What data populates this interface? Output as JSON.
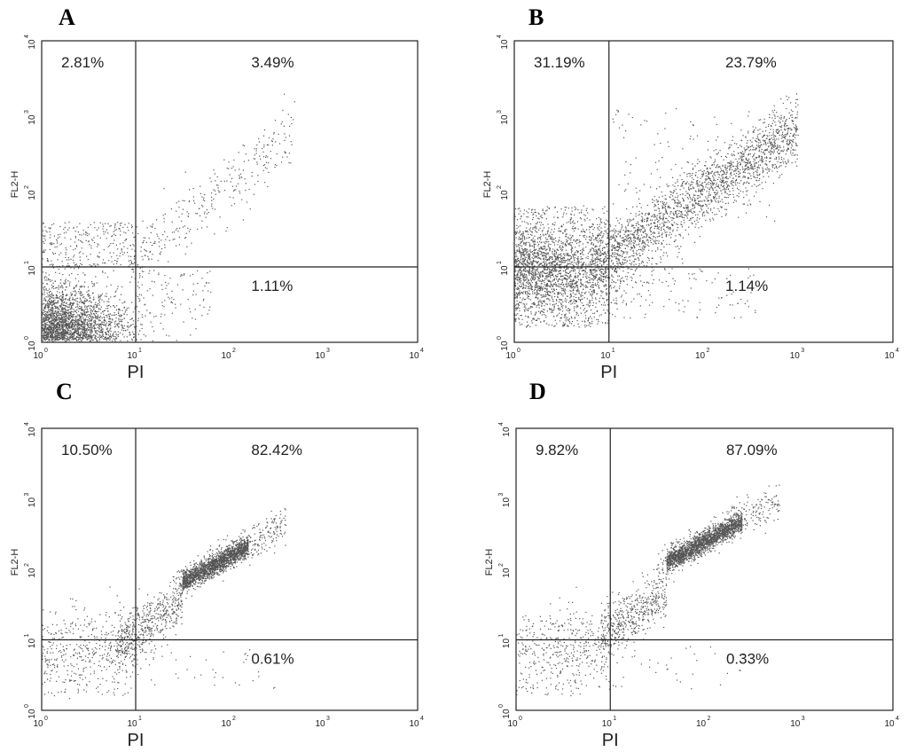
{
  "chart_data": [
    {
      "type": "scatter",
      "panel": "A",
      "xlabel": "PI",
      "ylabel": "FL2-H",
      "xscale": "log",
      "yscale": "log",
      "xlim": [
        1,
        10000
      ],
      "ylim": [
        1,
        10000
      ],
      "xticks": [
        "10^0",
        "10^1",
        "10^2",
        "10^3",
        "10^4"
      ],
      "yticks": [
        "10^0",
        "10^1",
        "10^2",
        "10^3",
        "10^4"
      ],
      "gate": {
        "x": 10,
        "y": 10
      },
      "quadrants": {
        "upper_left": "2.81%",
        "upper_right": "3.49%",
        "lower_right": "1.11%"
      },
      "color": "#555555"
    },
    {
      "type": "scatter",
      "panel": "B",
      "xlabel": "PI",
      "ylabel": "FL2-H",
      "xscale": "log",
      "yscale": "log",
      "xlim": [
        1,
        10000
      ],
      "ylim": [
        1,
        10000
      ],
      "xticks": [
        "10^0",
        "10^1",
        "10^2",
        "10^3",
        "10^4"
      ],
      "yticks": [
        "10^0",
        "10^1",
        "10^2",
        "10^3",
        "10^4"
      ],
      "gate": {
        "x": 10,
        "y": 10
      },
      "quadrants": {
        "upper_left": "31.19%",
        "upper_right": "23.79%",
        "lower_right": "1.14%"
      },
      "color": "#555555"
    },
    {
      "type": "scatter",
      "panel": "C",
      "xlabel": "PI",
      "ylabel": "FL2-H",
      "xscale": "log",
      "yscale": "log",
      "xlim": [
        1,
        10000
      ],
      "ylim": [
        1,
        10000
      ],
      "xticks": [
        "10^0",
        "10^1",
        "10^2",
        "10^3",
        "10^4"
      ],
      "yticks": [
        "10^0",
        "10^1",
        "10^2",
        "10^3",
        "10^4"
      ],
      "gate": {
        "x": 10,
        "y": 10
      },
      "quadrants": {
        "upper_left": "10.50%",
        "upper_right": "82.42%",
        "lower_right": "0.61%"
      },
      "color": "#555555"
    },
    {
      "type": "scatter",
      "panel": "D",
      "xlabel": "PI",
      "ylabel": "FL2-H",
      "xscale": "log",
      "yscale": "log",
      "xlim": [
        1,
        10000
      ],
      "ylim": [
        1,
        10000
      ],
      "xticks": [
        "10^0",
        "10^1",
        "10^2",
        "10^3",
        "10^4"
      ],
      "yticks": [
        "10^0",
        "10^1",
        "10^2",
        "10^3",
        "10^4"
      ],
      "gate": {
        "x": 10,
        "y": 10
      },
      "quadrants": {
        "upper_left": "9.82%",
        "upper_right": "87.09%",
        "lower_right": "0.33%"
      },
      "color": "#555555"
    }
  ]
}
